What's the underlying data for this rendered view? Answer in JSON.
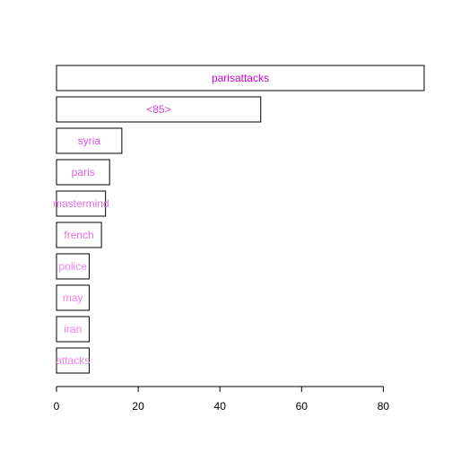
{
  "chart_data": {
    "type": "bar",
    "orientation": "horizontal",
    "categories": [
      "parisattacks",
      "<85>",
      "syria",
      "paris",
      "mastermind",
      "french",
      "police",
      "may",
      "iran",
      "attacks"
    ],
    "values": [
      90,
      50,
      16,
      13,
      12,
      11,
      8,
      8,
      8,
      8
    ],
    "label_colors": [
      "#d000d0",
      "#e040e0",
      "#e050e0",
      "#e060e0",
      "#e070e0",
      "#e070e0",
      "#f080f0",
      "#f080f0",
      "#f080f0",
      "#f080f0"
    ],
    "xlim": [
      0,
      90
    ],
    "x_ticks": [
      0,
      20,
      40,
      60,
      80
    ],
    "title": "",
    "xlabel": "",
    "ylabel": "",
    "grid": false,
    "legend": "none",
    "bar_fill": "#ffffff",
    "bar_stroke": "#000000"
  }
}
